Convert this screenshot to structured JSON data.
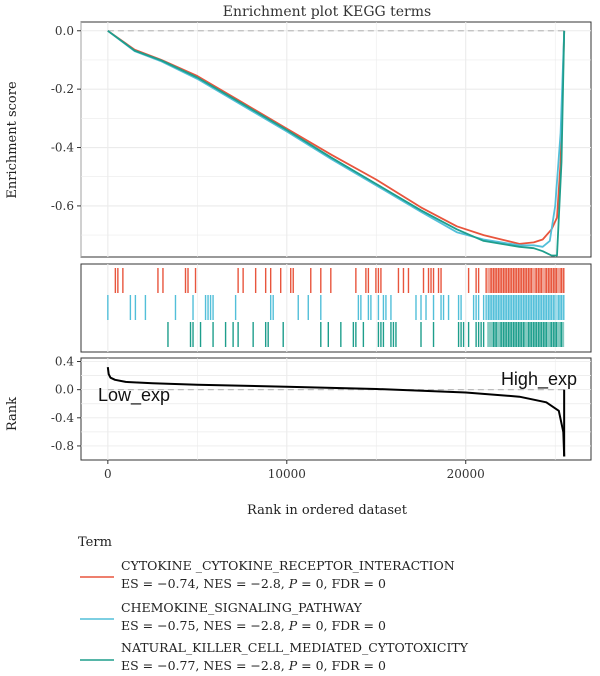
{
  "chart_data": [
    {
      "type": "line",
      "title": "Enrichment plot KEGG terms",
      "ylabel": "Enrichment score",
      "xlim": [
        -1500,
        27000
      ],
      "ylim": [
        -0.775,
        0.03
      ],
      "yticks": [
        0.0,
        -0.2,
        -0.4,
        -0.6
      ],
      "ytick_labels": [
        "0.0",
        "-0.2",
        "-0.4",
        "-0.6"
      ],
      "xticks": [
        0,
        10000,
        20000
      ],
      "grid": true,
      "series": [
        {
          "name": "CYTOKINE _CYTOKINE_RECEPTOR_INTERACTION",
          "color": "#e8553d",
          "x": [
            0,
            1500,
            3000,
            5000,
            7500,
            10000,
            12500,
            15000,
            17500,
            19500,
            21000,
            22000,
            23000,
            23800,
            24300,
            24800,
            25100,
            25300,
            25500
          ],
          "y": [
            0.0,
            -0.065,
            -0.1,
            -0.155,
            -0.245,
            -0.335,
            -0.425,
            -0.51,
            -0.605,
            -0.67,
            -0.7,
            -0.715,
            -0.73,
            -0.725,
            -0.715,
            -0.68,
            -0.64,
            -0.45,
            0.0
          ]
        },
        {
          "name": "CHEMOKINE_SIGNALING_PATHWAY",
          "color": "#52bfd9",
          "x": [
            0,
            1500,
            3000,
            5000,
            7500,
            10000,
            12500,
            15000,
            17500,
            19500,
            21000,
            22000,
            23000,
            23800,
            24300,
            24700,
            25000,
            25300,
            25500
          ],
          "y": [
            0.0,
            -0.07,
            -0.105,
            -0.165,
            -0.255,
            -0.345,
            -0.44,
            -0.53,
            -0.62,
            -0.69,
            -0.715,
            -0.725,
            -0.735,
            -0.735,
            -0.74,
            -0.72,
            -0.6,
            -0.35,
            0.0
          ]
        },
        {
          "name": "NATURAL_KILLER_CELL_MEDIATED_CYTOTOXICITY",
          "color": "#1e9e8c",
          "x": [
            0,
            1500,
            3000,
            5000,
            7500,
            10000,
            12500,
            15000,
            17500,
            19500,
            21000,
            22000,
            23000,
            23800,
            24300,
            24800,
            25100,
            25350,
            25500
          ],
          "y": [
            0.0,
            -0.068,
            -0.102,
            -0.16,
            -0.25,
            -0.34,
            -0.435,
            -0.525,
            -0.615,
            -0.68,
            -0.72,
            -0.73,
            -0.74,
            -0.745,
            -0.755,
            -0.77,
            -0.77,
            -0.45,
            0.0
          ]
        }
      ]
    },
    {
      "type": "barcode",
      "xlim": [
        -1500,
        27000
      ],
      "rows": [
        {
          "name": "CYTOKINE _CYTOKINE_RECEPTOR_INTERACTION",
          "color": "#e8553d",
          "seed": 11
        },
        {
          "name": "CHEMOKINE_SIGNALING_PATHWAY",
          "color": "#52bfd9",
          "seed": 23
        },
        {
          "name": "NATURAL_KILLER_CELL_MEDIATED_CYTOTOXICITY",
          "color": "#1e9e8c",
          "seed": 37
        }
      ]
    },
    {
      "type": "line",
      "ylabel": "Rank",
      "xlabel": "Rank in ordered dataset",
      "xlim": [
        -1500,
        27000
      ],
      "ylim": [
        -1.0,
        0.45
      ],
      "yticks": [
        0.4,
        0.0,
        -0.4,
        -0.8
      ],
      "ytick_labels": [
        "0.4",
        "0.0",
        "-0.4",
        "-0.8"
      ],
      "xticks": [
        0,
        10000,
        20000
      ],
      "xtick_labels": [
        "0",
        "10000",
        "20000"
      ],
      "series": [
        {
          "color": "#000000",
          "x": [
            0,
            50,
            150,
            400,
            1000,
            2500,
            5000,
            10000,
            15000,
            20000,
            23000,
            24500,
            25200,
            25450,
            25500
          ],
          "y": [
            0.32,
            0.22,
            0.17,
            0.14,
            0.11,
            0.09,
            0.07,
            0.04,
            0.01,
            -0.04,
            -0.1,
            -0.18,
            -0.3,
            -0.6,
            -0.95
          ]
        }
      ],
      "annotations": [
        {
          "text": "Low_exp",
          "x": 0,
          "y": 0.0
        },
        {
          "text": "High_exp",
          "x": 25500,
          "y": 0.0
        }
      ]
    }
  ],
  "legend": {
    "title": "Term",
    "items": [
      {
        "name": "CYTOKINE _CYTOKINE_RECEPTOR_INTERACTION",
        "es": "−0.74",
        "nes": "−2.8",
        "p": "0",
        "fdr": "0",
        "color": "#e8553d"
      },
      {
        "name": "CHEMOKINE_SIGNALING_PATHWAY",
        "es": "−0.75",
        "nes": "−2.8",
        "p": "0",
        "fdr": "0",
        "color": "#52bfd9"
      },
      {
        "name": "NATURAL_KILLER_CELL_MEDIATED_CYTOTOXICITY",
        "es": "−0.77",
        "nes": "−2.8",
        "p": "0",
        "fdr": "0",
        "color": "#1e9e8c"
      }
    ]
  }
}
